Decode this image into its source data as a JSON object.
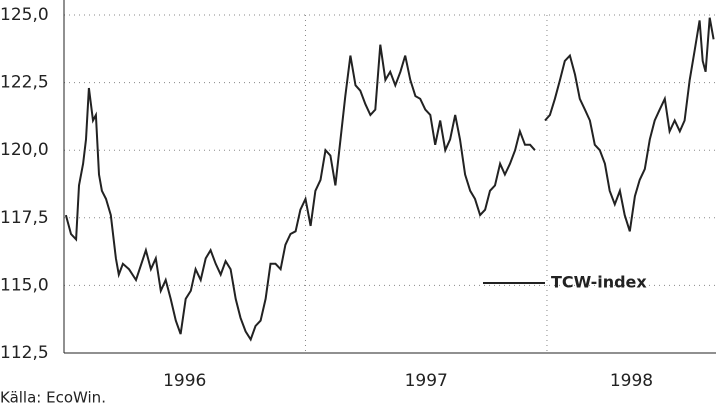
{
  "chart_data": {
    "type": "line",
    "series": [
      {
        "name": "TCW-index",
        "color": "#222222",
        "x": [
          1996.008,
          1996.029,
          1996.05,
          1996.062,
          1996.079,
          1996.091,
          1996.103,
          1996.12,
          1996.132,
          1996.145,
          1996.157,
          1996.174,
          1996.194,
          1996.215,
          1996.227,
          1996.244,
          1996.269,
          1996.298,
          1996.339,
          1996.36,
          1996.38,
          1996.401,
          1996.421,
          1996.442,
          1996.463,
          1996.483,
          1996.504,
          1996.525,
          1996.545,
          1996.566,
          1996.587,
          1996.607,
          1996.628,
          1996.649,
          1996.669,
          1996.69,
          1996.711,
          1996.731,
          1996.752,
          1996.773,
          1996.793,
          1996.814,
          1996.835,
          1996.855,
          1996.876,
          1996.897,
          1996.917,
          1996.938,
          1996.959,
          1996.979,
          1997.0,
          1997.021,
          1997.041,
          1997.062,
          1997.083,
          1997.103,
          1997.124,
          1997.145,
          1997.165,
          1997.186,
          1997.207,
          1997.227,
          1997.248,
          1997.269,
          1997.289,
          1997.31,
          1997.331,
          1997.351,
          1997.372,
          1997.393,
          1997.413,
          1997.434,
          1997.455,
          1997.475,
          1997.496,
          1997.517,
          1997.537,
          1997.558,
          1997.579,
          1997.599,
          1997.62,
          1997.64,
          1997.661,
          1997.682,
          1997.702,
          1997.723,
          1997.744,
          1997.764,
          1997.785,
          1997.806,
          1997.826,
          1997.847,
          1997.868,
          1997.888,
          1997.909,
          1997.93,
          1997.95,
          1997.971,
          1997.992,
          1998.012,
          1998.033,
          1998.054,
          1998.074,
          1998.095,
          1998.116,
          1998.136,
          1998.157,
          1998.178,
          1998.198,
          1998.219,
          1998.24,
          1998.26,
          1998.281,
          1998.302,
          1998.322,
          1998.343,
          1998.364,
          1998.384,
          1998.405,
          1998.426,
          1998.446,
          1998.467,
          1998.488,
          1998.508,
          1998.529,
          1998.55,
          1998.57,
          1998.591,
          1998.612,
          1998.632,
          1998.645,
          1998.657,
          1998.674,
          1998.69
        ],
        "values": [
          117.6,
          116.9,
          116.7,
          118.7,
          119.5,
          120.4,
          122.3,
          121.1,
          121.3,
          119.1,
          118.5,
          118.2,
          117.6,
          116.0,
          115.4,
          115.8,
          115.6,
          115.2,
          116.3,
          115.6,
          116.0,
          114.8,
          115.2,
          114.5,
          113.7,
          113.2,
          114.5,
          114.8,
          115.6,
          115.2,
          116.0,
          116.3,
          115.8,
          115.4,
          115.9,
          115.6,
          114.5,
          113.8,
          113.3,
          113.0,
          113.5,
          113.7,
          114.5,
          115.8,
          115.8,
          115.6,
          116.5,
          116.9,
          117.0,
          117.8,
          118.2,
          117.2,
          118.5,
          118.9,
          120.0,
          119.8,
          118.7,
          120.4,
          122.0,
          123.5,
          122.4,
          122.2,
          121.7,
          121.3,
          121.5,
          123.9,
          122.6,
          122.9,
          122.4,
          122.9,
          123.5,
          122.6,
          122.0,
          121.9,
          121.5,
          121.3,
          120.2,
          121.1,
          120.0,
          120.4,
          121.3,
          120.4,
          119.1,
          118.5,
          118.2,
          117.6,
          117.8,
          118.5,
          118.7,
          119.5,
          119.1,
          119.5,
          120.0,
          120.7,
          120.2,
          120.2,
          120.0,
          null,
          121.1,
          121.3,
          121.9,
          122.6,
          123.3,
          123.5,
          122.8,
          121.9,
          121.5,
          121.1,
          120.2,
          120.0,
          119.5,
          118.5,
          118.0,
          118.5,
          117.6,
          117.0,
          118.3,
          118.9,
          119.3,
          120.4,
          121.1,
          121.5,
          121.9,
          120.7,
          121.1,
          120.7,
          121.1,
          122.6,
          123.7,
          124.8,
          123.3,
          122.9,
          124.9,
          124.1
        ]
      }
    ],
    "xlim": [
      1996,
      1998.7
    ],
    "xticks": [
      {
        "value": 1996.5,
        "label": "1996"
      },
      {
        "value": 1997.5,
        "label": "1997"
      },
      {
        "value": 1998.35,
        "label": "1998"
      }
    ],
    "xgrid": [
      1997,
      1998
    ],
    "ylim": [
      112.5,
      125
    ],
    "yticks": [
      {
        "value": 112.5,
        "label": "112,5"
      },
      {
        "value": 115,
        "label": "115,0"
      },
      {
        "value": 117.5,
        "label": "117,5"
      },
      {
        "value": 120,
        "label": "120,0"
      },
      {
        "value": 122.5,
        "label": "122,5"
      },
      {
        "value": 125,
        "label": "125,0"
      }
    ],
    "grid": true,
    "legend": "lower-right",
    "source": "Källa: EcoWin."
  }
}
